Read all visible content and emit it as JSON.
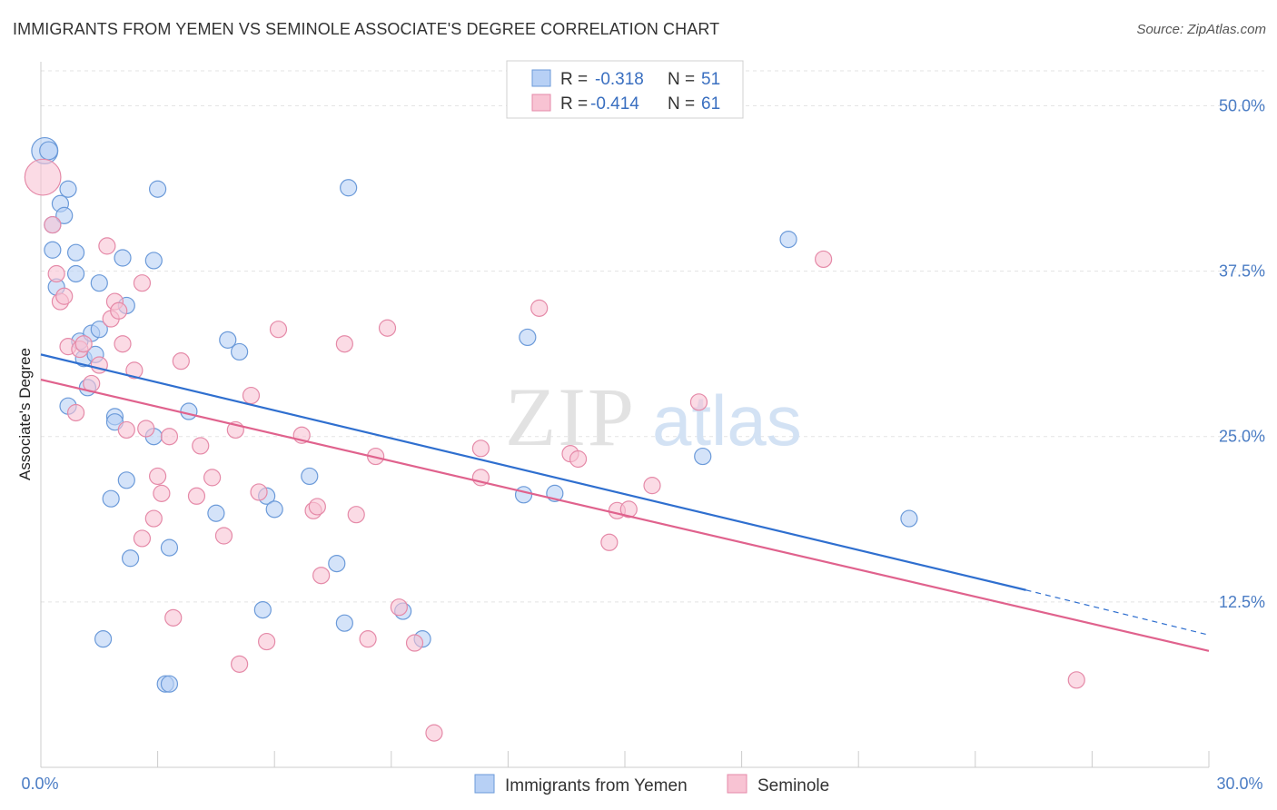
{
  "title": "IMMIGRANTS FROM YEMEN VS SEMINOLE ASSOCIATE'S DEGREE CORRELATION CHART",
  "source": "Source: ZipAtlas.com",
  "watermark": {
    "zip": "ZIP",
    "atlas": "atlas"
  },
  "legend": {
    "r_label": "R =",
    "n_label": "N =",
    "rows": [
      {
        "r": "-0.318",
        "n": "51"
      },
      {
        "r": "-0.414",
        "n": "61"
      }
    ]
  },
  "colors": {
    "yemen_fill": "#b7d0f5",
    "yemen_stroke": "#6b9ad9",
    "yemen_line": "#2f6fcf",
    "seminole_fill": "#f8c3d3",
    "seminole_stroke": "#e58aa8",
    "seminole_line": "#e0628d",
    "grid": "#e3e3e3",
    "axis_text": "#4a7cc4"
  },
  "chart_data": {
    "type": "scatter",
    "title": "IMMIGRANTS FROM YEMEN VS SEMINOLE ASSOCIATE'S DEGREE CORRELATION CHART",
    "xlabel": "",
    "ylabel": "Associate's Degree",
    "xlim": [
      0,
      30
    ],
    "ylim": [
      0,
      52.5
    ],
    "x_tick_labels": [
      "0.0%",
      "30.0%"
    ],
    "y_ticks": [
      12.5,
      25.0,
      37.5,
      50.0
    ],
    "y_tick_labels": [
      "12.5%",
      "25.0%",
      "37.5%",
      "50.0%"
    ],
    "grid": true,
    "legend_position": "bottom-center",
    "series": [
      {
        "name": "Immigrants from Yemen",
        "color": "#6b9ad9",
        "trend": {
          "x": [
            0,
            25.3
          ],
          "y": [
            31.2,
            13.4
          ],
          "dashed_to": [
            30,
            10.0
          ]
        },
        "points": [
          {
            "x": 0.1,
            "y": 46.6,
            "s": 1.6
          },
          {
            "x": 0.2,
            "y": 46.6,
            "s": 1.1
          },
          {
            "x": 0.3,
            "y": 41.0
          },
          {
            "x": 0.3,
            "y": 39.1
          },
          {
            "x": 0.4,
            "y": 36.3
          },
          {
            "x": 0.5,
            "y": 42.6
          },
          {
            "x": 0.6,
            "y": 41.7
          },
          {
            "x": 0.7,
            "y": 43.7
          },
          {
            "x": 0.7,
            "y": 27.3
          },
          {
            "x": 0.9,
            "y": 38.9
          },
          {
            "x": 0.9,
            "y": 37.3
          },
          {
            "x": 1.0,
            "y": 32.2
          },
          {
            "x": 1.1,
            "y": 30.9
          },
          {
            "x": 1.2,
            "y": 28.7
          },
          {
            "x": 1.3,
            "y": 32.8
          },
          {
            "x": 1.4,
            "y": 31.2
          },
          {
            "x": 1.5,
            "y": 33.1
          },
          {
            "x": 1.5,
            "y": 36.6
          },
          {
            "x": 1.6,
            "y": 9.7
          },
          {
            "x": 1.8,
            "y": 20.3
          },
          {
            "x": 1.9,
            "y": 26.5
          },
          {
            "x": 1.9,
            "y": 26.1
          },
          {
            "x": 2.1,
            "y": 38.5
          },
          {
            "x": 2.2,
            "y": 21.7
          },
          {
            "x": 2.2,
            "y": 34.9
          },
          {
            "x": 2.3,
            "y": 15.8
          },
          {
            "x": 2.9,
            "y": 38.3
          },
          {
            "x": 2.9,
            "y": 25.0
          },
          {
            "x": 3.0,
            "y": 43.7
          },
          {
            "x": 3.2,
            "y": 6.3
          },
          {
            "x": 3.3,
            "y": 16.6
          },
          {
            "x": 3.3,
            "y": 6.3
          },
          {
            "x": 3.8,
            "y": 26.9
          },
          {
            "x": 4.5,
            "y": 19.2
          },
          {
            "x": 4.8,
            "y": 32.3
          },
          {
            "x": 5.1,
            "y": 31.4
          },
          {
            "x": 5.7,
            "y": 11.9
          },
          {
            "x": 5.8,
            "y": 20.5
          },
          {
            "x": 6.0,
            "y": 19.5
          },
          {
            "x": 6.9,
            "y": 22.0
          },
          {
            "x": 7.6,
            "y": 15.4
          },
          {
            "x": 7.8,
            "y": 10.9
          },
          {
            "x": 7.9,
            "y": 43.8
          },
          {
            "x": 9.3,
            "y": 11.8
          },
          {
            "x": 9.8,
            "y": 9.7
          },
          {
            "x": 12.4,
            "y": 20.6
          },
          {
            "x": 12.5,
            "y": 32.5
          },
          {
            "x": 13.2,
            "y": 20.7
          },
          {
            "x": 17.0,
            "y": 23.5
          },
          {
            "x": 19.2,
            "y": 39.9
          },
          {
            "x": 22.3,
            "y": 18.8
          }
        ]
      },
      {
        "name": "Seminole",
        "color": "#e58aa8",
        "trend": {
          "x": [
            0,
            30
          ],
          "y": [
            29.3,
            8.8
          ]
        },
        "points": [
          {
            "x": 0.05,
            "y": 44.6,
            "s": 2.2
          },
          {
            "x": 0.3,
            "y": 41.0
          },
          {
            "x": 0.4,
            "y": 37.3
          },
          {
            "x": 0.5,
            "y": 35.2
          },
          {
            "x": 0.6,
            "y": 35.6
          },
          {
            "x": 0.7,
            "y": 31.8
          },
          {
            "x": 0.9,
            "y": 26.8
          },
          {
            "x": 1.0,
            "y": 31.6
          },
          {
            "x": 1.1,
            "y": 32.0
          },
          {
            "x": 1.3,
            "y": 29.0
          },
          {
            "x": 1.5,
            "y": 30.4
          },
          {
            "x": 1.7,
            "y": 39.4
          },
          {
            "x": 1.8,
            "y": 33.9
          },
          {
            "x": 1.9,
            "y": 35.2
          },
          {
            "x": 2.0,
            "y": 34.5
          },
          {
            "x": 2.1,
            "y": 32.0
          },
          {
            "x": 2.2,
            "y": 25.5
          },
          {
            "x": 2.4,
            "y": 30.0
          },
          {
            "x": 2.6,
            "y": 36.6
          },
          {
            "x": 2.6,
            "y": 17.3
          },
          {
            "x": 2.7,
            "y": 25.6
          },
          {
            "x": 2.9,
            "y": 18.8
          },
          {
            "x": 3.0,
            "y": 22.0
          },
          {
            "x": 3.1,
            "y": 20.7
          },
          {
            "x": 3.3,
            "y": 25.0
          },
          {
            "x": 3.4,
            "y": 11.3
          },
          {
            "x": 3.6,
            "y": 30.7
          },
          {
            "x": 4.0,
            "y": 20.5
          },
          {
            "x": 4.1,
            "y": 24.3
          },
          {
            "x": 4.4,
            "y": 21.9
          },
          {
            "x": 4.7,
            "y": 17.5
          },
          {
            "x": 5.0,
            "y": 25.5
          },
          {
            "x": 5.1,
            "y": 7.8
          },
          {
            "x": 5.4,
            "y": 28.1
          },
          {
            "x": 5.6,
            "y": 20.8
          },
          {
            "x": 5.8,
            "y": 9.5
          },
          {
            "x": 6.1,
            "y": 33.1
          },
          {
            "x": 6.7,
            "y": 25.1
          },
          {
            "x": 7.0,
            "y": 19.4
          },
          {
            "x": 7.1,
            "y": 19.7
          },
          {
            "x": 7.2,
            "y": 14.5
          },
          {
            "x": 7.8,
            "y": 32.0
          },
          {
            "x": 8.1,
            "y": 19.1
          },
          {
            "x": 8.4,
            "y": 9.7
          },
          {
            "x": 8.6,
            "y": 23.5
          },
          {
            "x": 8.9,
            "y": 33.2
          },
          {
            "x": 9.2,
            "y": 12.1
          },
          {
            "x": 9.6,
            "y": 9.4
          },
          {
            "x": 10.1,
            "y": 2.6
          },
          {
            "x": 11.3,
            "y": 24.1
          },
          {
            "x": 11.3,
            "y": 21.9
          },
          {
            "x": 12.8,
            "y": 34.7
          },
          {
            "x": 13.6,
            "y": 23.7
          },
          {
            "x": 13.8,
            "y": 23.3
          },
          {
            "x": 14.6,
            "y": 17.0
          },
          {
            "x": 14.8,
            "y": 19.4
          },
          {
            "x": 15.1,
            "y": 19.5
          },
          {
            "x": 15.7,
            "y": 21.3
          },
          {
            "x": 16.9,
            "y": 27.6
          },
          {
            "x": 20.1,
            "y": 38.4
          },
          {
            "x": 26.6,
            "y": 6.6
          }
        ]
      }
    ]
  }
}
